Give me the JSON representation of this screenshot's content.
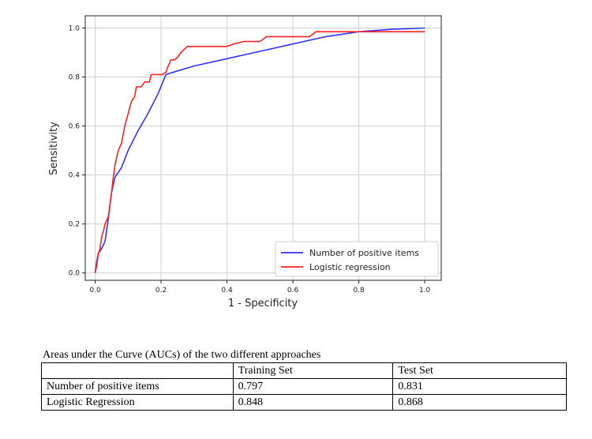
{
  "chart_data": {
    "type": "line",
    "xlabel": "1 - Specificity",
    "ylabel": "Sensitivity",
    "xlim": [
      -0.03,
      1.05
    ],
    "ylim": [
      -0.03,
      1.05
    ],
    "xticks": [
      0.0,
      0.2,
      0.4,
      0.6,
      0.8,
      1.0
    ],
    "xtick_labels": [
      "0.0",
      "0.2",
      "0.4",
      "0.6",
      "0.8",
      "1.0"
    ],
    "yticks": [
      0.0,
      0.2,
      0.4,
      0.6,
      0.8,
      1.0
    ],
    "ytick_labels": [
      "0.0",
      "0.2",
      "0.4",
      "0.6",
      "0.8",
      "1.0"
    ],
    "grid": true,
    "legend_position": "lower-right",
    "series": [
      {
        "name": "Number of positive items",
        "color": "#3333ff",
        "points": [
          [
            0.0,
            0.0
          ],
          [
            0.005,
            0.05
          ],
          [
            0.01,
            0.08
          ],
          [
            0.02,
            0.1
          ],
          [
            0.03,
            0.13
          ],
          [
            0.04,
            0.22
          ],
          [
            0.05,
            0.33
          ],
          [
            0.06,
            0.39
          ],
          [
            0.08,
            0.43
          ],
          [
            0.1,
            0.5
          ],
          [
            0.13,
            0.58
          ],
          [
            0.16,
            0.65
          ],
          [
            0.19,
            0.73
          ],
          [
            0.215,
            0.81
          ],
          [
            0.25,
            0.825
          ],
          [
            0.3,
            0.845
          ],
          [
            0.4,
            0.875
          ],
          [
            0.5,
            0.905
          ],
          [
            0.6,
            0.935
          ],
          [
            0.7,
            0.965
          ],
          [
            0.8,
            0.985
          ],
          [
            0.9,
            0.995
          ],
          [
            1.0,
            1.0
          ]
        ]
      },
      {
        "name": "Logistic regression",
        "color": "#ff2222",
        "points": [
          [
            0.0,
            0.0
          ],
          [
            0.005,
            0.03
          ],
          [
            0.01,
            0.08
          ],
          [
            0.015,
            0.1
          ],
          [
            0.02,
            0.15
          ],
          [
            0.025,
            0.17
          ],
          [
            0.03,
            0.2
          ],
          [
            0.04,
            0.23
          ],
          [
            0.045,
            0.28
          ],
          [
            0.05,
            0.33
          ],
          [
            0.055,
            0.39
          ],
          [
            0.06,
            0.44
          ],
          [
            0.07,
            0.5
          ],
          [
            0.08,
            0.53
          ],
          [
            0.09,
            0.6
          ],
          [
            0.1,
            0.65
          ],
          [
            0.11,
            0.7
          ],
          [
            0.12,
            0.72
          ],
          [
            0.125,
            0.76
          ],
          [
            0.14,
            0.76
          ],
          [
            0.15,
            0.78
          ],
          [
            0.165,
            0.78
          ],
          [
            0.17,
            0.81
          ],
          [
            0.205,
            0.81
          ],
          [
            0.215,
            0.82
          ],
          [
            0.22,
            0.84
          ],
          [
            0.23,
            0.87
          ],
          [
            0.24,
            0.87
          ],
          [
            0.25,
            0.88
          ],
          [
            0.26,
            0.9
          ],
          [
            0.28,
            0.925
          ],
          [
            0.4,
            0.925
          ],
          [
            0.42,
            0.935
          ],
          [
            0.45,
            0.945
          ],
          [
            0.5,
            0.945
          ],
          [
            0.52,
            0.965
          ],
          [
            0.65,
            0.965
          ],
          [
            0.67,
            0.985
          ],
          [
            1.0,
            0.985
          ]
        ]
      }
    ]
  },
  "auc_table": {
    "caption": "Areas under the Curve (AUCs) of the two different approaches",
    "headers": [
      "",
      "Training Set",
      "Test Set"
    ],
    "rows": [
      {
        "label": "Number of positive items",
        "training": "0.797",
        "test": "0.831"
      },
      {
        "label": "Logistic Regression",
        "training": "0.848",
        "test": "0.868"
      }
    ]
  }
}
